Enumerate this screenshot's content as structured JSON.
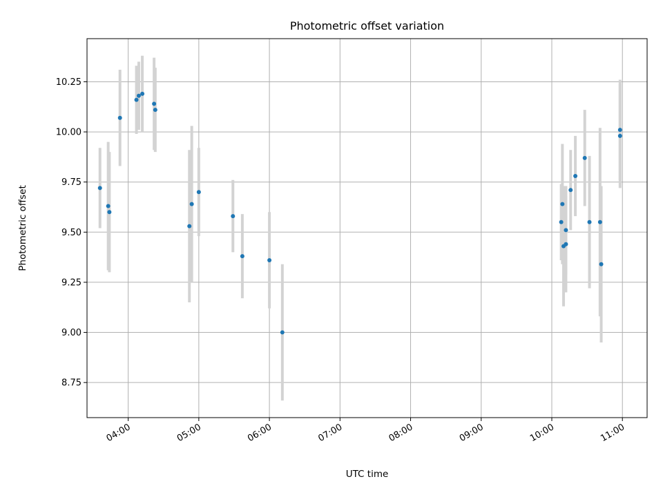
{
  "chart_data": {
    "type": "scatter",
    "title": "Photometric offset variation",
    "xlabel": "UTC time",
    "ylabel": "Photometric offset",
    "x_unit": "hours UTC",
    "xlim": [
      "03:25",
      "11:21"
    ],
    "ylim": [
      8.575,
      10.465
    ],
    "grid": true,
    "marker_color": "#1f77b4",
    "errorbar_color": "#d3d3d3",
    "x_ticks": [
      "04:00",
      "05:00",
      "06:00",
      "07:00",
      "08:00",
      "09:00",
      "10:00",
      "11:00"
    ],
    "y_ticks": [
      "8.75",
      "9.00",
      "9.25",
      "9.50",
      "9.75",
      "10.00",
      "10.25"
    ],
    "points": [
      {
        "x": "03:36",
        "y": 9.72,
        "err": 0.2
      },
      {
        "x": "03:43",
        "y": 9.63,
        "err": 0.32
      },
      {
        "x": "03:44",
        "y": 9.6,
        "err": 0.3
      },
      {
        "x": "03:53",
        "y": 10.07,
        "err": 0.24
      },
      {
        "x": "04:07",
        "y": 10.16,
        "err": 0.17
      },
      {
        "x": "04:09",
        "y": 10.18,
        "err": 0.17
      },
      {
        "x": "04:12",
        "y": 10.19,
        "err": 0.19
      },
      {
        "x": "04:22",
        "y": 10.14,
        "err": 0.23
      },
      {
        "x": "04:23",
        "y": 10.11,
        "err": 0.21
      },
      {
        "x": "04:52",
        "y": 9.53,
        "err": 0.38
      },
      {
        "x": "04:54",
        "y": 9.64,
        "err": 0.39
      },
      {
        "x": "05:00",
        "y": 9.7,
        "err": 0.22
      },
      {
        "x": "05:29",
        "y": 9.58,
        "err": 0.18
      },
      {
        "x": "05:37",
        "y": 9.38,
        "err": 0.21
      },
      {
        "x": "06:00",
        "y": 9.36,
        "err": 0.24
      },
      {
        "x": "06:11",
        "y": 9.0,
        "err": 0.34
      },
      {
        "x": "10:08",
        "y": 9.55,
        "err": 0.19
      },
      {
        "x": "10:09",
        "y": 9.64,
        "err": 0.3
      },
      {
        "x": "10:10",
        "y": 9.43,
        "err": 0.3
      },
      {
        "x": "10:12",
        "y": 9.44,
        "err": 0.24
      },
      {
        "x": "10:12",
        "y": 9.51,
        "err": 0.22
      },
      {
        "x": "10:16",
        "y": 9.71,
        "err": 0.2
      },
      {
        "x": "10:20",
        "y": 9.78,
        "err": 0.2
      },
      {
        "x": "10:28",
        "y": 9.87,
        "err": 0.24
      },
      {
        "x": "10:32",
        "y": 9.55,
        "err": 0.33
      },
      {
        "x": "10:41",
        "y": 9.55,
        "err": 0.47
      },
      {
        "x": "10:42",
        "y": 9.34,
        "err": 0.39
      },
      {
        "x": "10:58",
        "y": 10.01,
        "err": 0.25
      },
      {
        "x": "10:58",
        "y": 9.98,
        "err": 0.26
      }
    ]
  }
}
